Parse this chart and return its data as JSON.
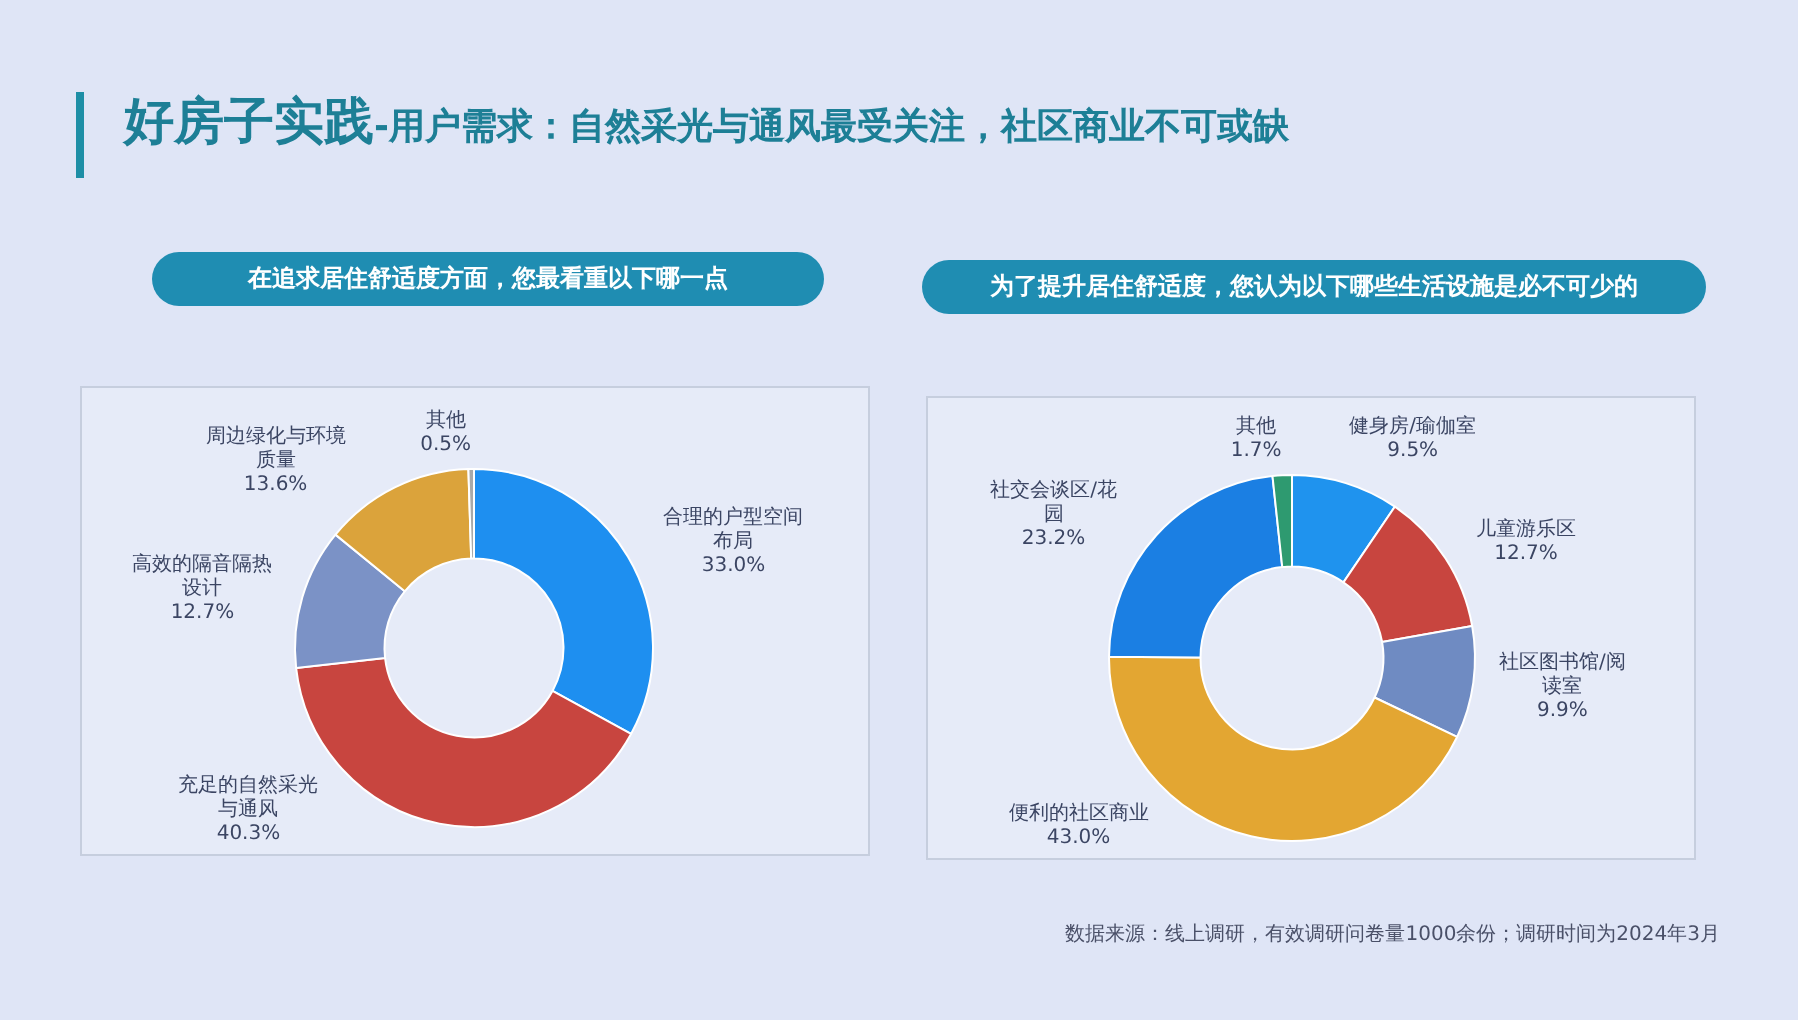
{
  "chart_data": [
    {
      "type": "donut",
      "title": "好房子实践-用户需求：自然采光与通风最受关注，社区商业不可或缺",
      "subtitle": "在追求居住舒适度方面，您最看重以下哪一点",
      "categories": [
        "合理的户型空间布局",
        "充足的自然采光与通风",
        "高效的隔音隔热设计",
        "周边绿化与环境质量",
        "其他"
      ],
      "values": [
        33.0,
        40.3,
        12.7,
        13.6,
        0.5
      ],
      "value_labels": [
        "33.0%",
        "40.3%",
        "12.7%",
        "13.6%",
        "0.5%"
      ],
      "colors": [
        "#1e8ff0",
        "#c8453f",
        "#7b92c6",
        "#dba33b",
        "#a9a9a9"
      ]
    },
    {
      "type": "donut",
      "subtitle": "为了提升居住舒适度，您认为以下哪些生活设施是必不可少的",
      "categories": [
        "健身房/瑜伽室",
        "儿童游乐区",
        "社区图书馆/阅读室",
        "便利的社区商业",
        "社交会谈区/花园",
        "其他"
      ],
      "values": [
        9.5,
        12.7,
        9.9,
        43.0,
        23.2,
        1.7
      ],
      "value_labels": [
        "9.5%",
        "12.7%",
        "9.9%",
        "43.0%",
        "23.2%",
        "1.7%"
      ],
      "colors": [
        "#1f93ee",
        "#c8453f",
        "#6f8bc2",
        "#e3a632",
        "#1b7fe3",
        "#2e9a70"
      ],
      "annotations": [
        "数据来源：线上调研，有效调研问卷量1000余份；调研时间为2024年3月"
      ]
    }
  ]
}
